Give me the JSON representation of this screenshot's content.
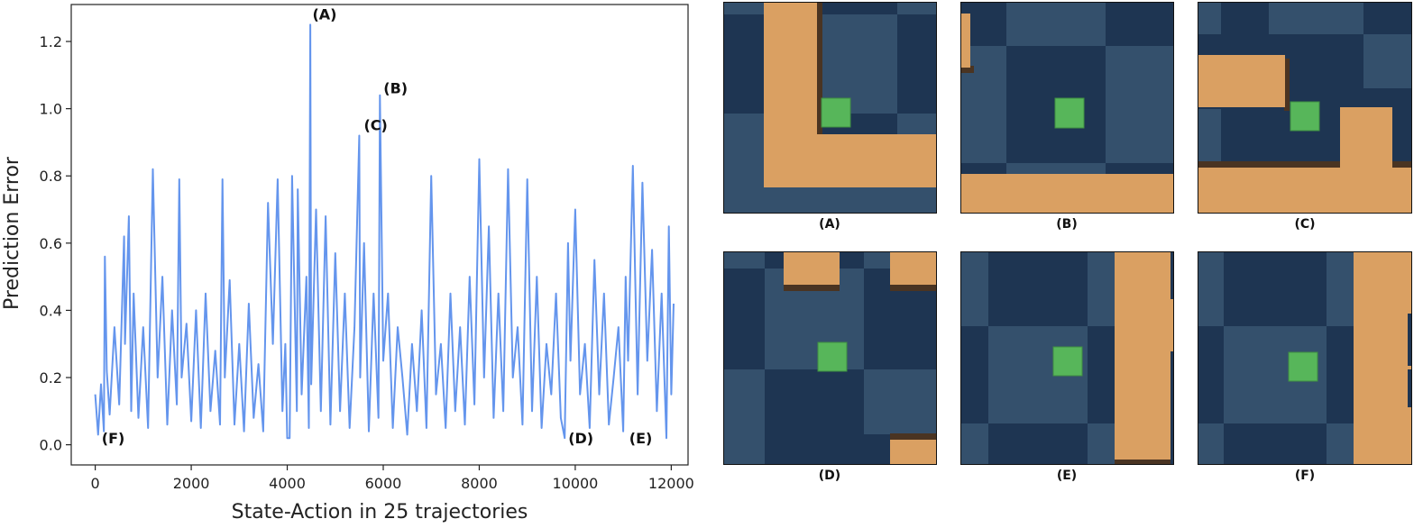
{
  "chart_data": {
    "type": "line",
    "title": "",
    "xlabel": "State-Action in 25 trajectories",
    "ylabel": "Prediction Error",
    "xlim": [
      -500,
      12350
    ],
    "ylim": [
      -0.06,
      1.31
    ],
    "xticks": [
      0,
      2000,
      4000,
      6000,
      8000,
      10000,
      12000
    ],
    "xtick_labels": [
      "0",
      "2000",
      "4000",
      "6000",
      "8000",
      "10000",
      "12000"
    ],
    "yticks": [
      0.0,
      0.2,
      0.4,
      0.6,
      0.8,
      1.0,
      1.2
    ],
    "ytick_labels": [
      "0.0",
      "0.2",
      "0.4",
      "0.6",
      "0.8",
      "1.0",
      "1.2"
    ],
    "line_color": "#6495ed",
    "grid": false,
    "series": [
      {
        "name": "",
        "x": [
          0,
          60,
          120,
          180,
          200,
          240,
          300,
          400,
          500,
          600,
          620,
          700,
          750,
          800,
          900,
          1000,
          1100,
          1200,
          1300,
          1400,
          1500,
          1600,
          1700,
          1750,
          1800,
          1900,
          2000,
          2100,
          2200,
          2300,
          2400,
          2500,
          2600,
          2650,
          2700,
          2800,
          2900,
          3000,
          3100,
          3200,
          3300,
          3400,
          3500,
          3600,
          3700,
          3800,
          3900,
          3960,
          4000,
          4050,
          4100,
          4200,
          4220,
          4300,
          4400,
          4450,
          4480,
          4500,
          4600,
          4700,
          4800,
          4900,
          5000,
          5100,
          5200,
          5300,
          5400,
          5500,
          5520,
          5600,
          5700,
          5800,
          5900,
          5930,
          6000,
          6100,
          6200,
          6300,
          6400,
          6500,
          6600,
          6700,
          6800,
          6900,
          7000,
          7100,
          7200,
          7300,
          7400,
          7500,
          7600,
          7700,
          7800,
          7900,
          8000,
          8100,
          8200,
          8300,
          8400,
          8500,
          8600,
          8700,
          8800,
          8900,
          9000,
          9100,
          9200,
          9300,
          9400,
          9500,
          9600,
          9700,
          9780,
          9850,
          9900,
          10000,
          10100,
          10200,
          10300,
          10400,
          10500,
          10600,
          10700,
          10800,
          10900,
          11000,
          11050,
          11100,
          11200,
          11300,
          11400,
          11500,
          11600,
          11700,
          11800,
          11900,
          11950,
          12000,
          12050
        ],
        "values": [
          0.15,
          0.03,
          0.18,
          0.04,
          0.56,
          0.22,
          0.09,
          0.35,
          0.12,
          0.62,
          0.3,
          0.68,
          0.1,
          0.45,
          0.08,
          0.35,
          0.05,
          0.82,
          0.2,
          0.5,
          0.06,
          0.4,
          0.12,
          0.79,
          0.2,
          0.36,
          0.07,
          0.4,
          0.05,
          0.45,
          0.1,
          0.28,
          0.06,
          0.79,
          0.2,
          0.49,
          0.06,
          0.3,
          0.04,
          0.42,
          0.08,
          0.24,
          0.04,
          0.72,
          0.3,
          0.79,
          0.1,
          0.3,
          0.02,
          0.02,
          0.8,
          0.1,
          0.76,
          0.15,
          0.5,
          0.05,
          1.25,
          0.18,
          0.7,
          0.1,
          0.68,
          0.06,
          0.57,
          0.1,
          0.45,
          0.05,
          0.35,
          0.92,
          0.2,
          0.6,
          0.04,
          0.45,
          0.08,
          1.04,
          0.25,
          0.45,
          0.05,
          0.35,
          0.2,
          0.03,
          0.3,
          0.1,
          0.4,
          0.05,
          0.8,
          0.15,
          0.3,
          0.05,
          0.45,
          0.1,
          0.35,
          0.06,
          0.5,
          0.12,
          0.85,
          0.2,
          0.65,
          0.08,
          0.45,
          0.1,
          0.82,
          0.2,
          0.35,
          0.06,
          0.79,
          0.1,
          0.5,
          0.05,
          0.3,
          0.15,
          0.45,
          0.08,
          0.02,
          0.6,
          0.25,
          0.7,
          0.15,
          0.3,
          0.05,
          0.55,
          0.15,
          0.45,
          0.06,
          0.2,
          0.35,
          0.04,
          0.5,
          0.25,
          0.83,
          0.15,
          0.78,
          0.25,
          0.58,
          0.1,
          0.45,
          0.02,
          0.65,
          0.15,
          0.42
        ]
      }
    ],
    "annotations": [
      {
        "label": "(A)",
        "x": 4450,
        "y": 1.25
      },
      {
        "label": "(B)",
        "x": 5930,
        "y": 1.03
      },
      {
        "label": "(C)",
        "x": 5520,
        "y": 0.92
      },
      {
        "label": "(D)",
        "x": 9780,
        "y": 0.01
      },
      {
        "label": "(E)",
        "x": 11050,
        "y": 0.01
      },
      {
        "label": "(F)",
        "x": 60,
        "y": 0.01
      }
    ]
  },
  "panels": [
    {
      "caption": "(A)"
    },
    {
      "caption": "(B)"
    },
    {
      "caption": "(C)"
    },
    {
      "caption": "(D)"
    },
    {
      "caption": "(E)"
    },
    {
      "caption": "(F)"
    }
  ],
  "colors": {
    "floor_dark": "#1e3552",
    "floor_light": "#34506c",
    "wall": "#daa062",
    "wall_shadow": "#4a3422",
    "agent": "#57b65a"
  }
}
